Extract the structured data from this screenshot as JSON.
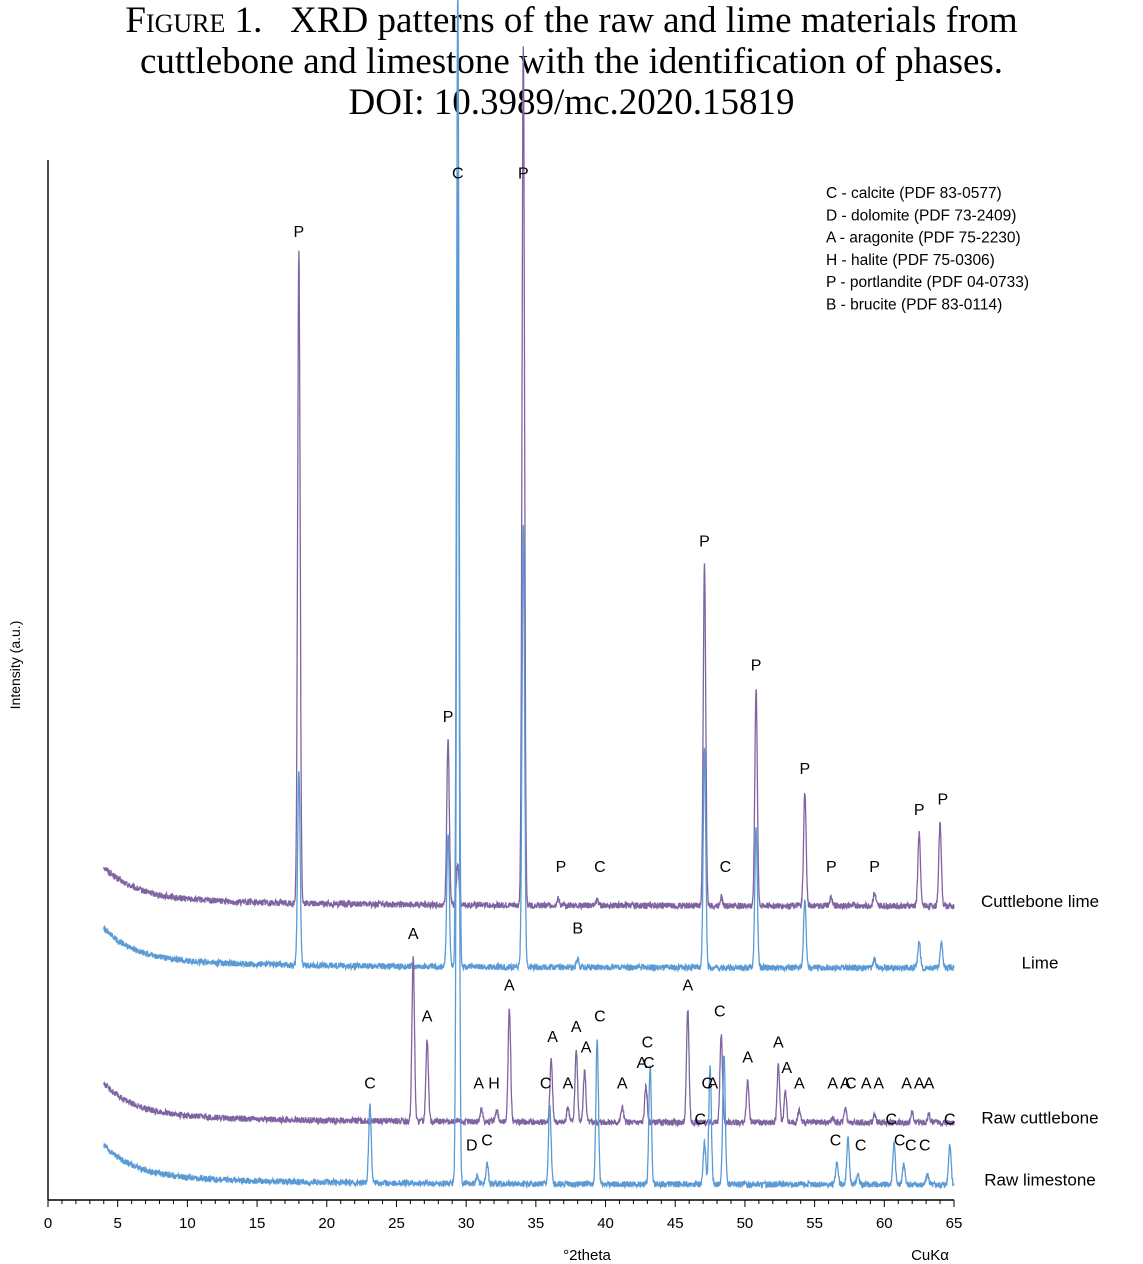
{
  "figure": {
    "label": "Figure 1.",
    "caption_line1": "XRD patterns of the raw and lime materials from",
    "caption_line2": "cuttlebone and limestone with the identification of phases.",
    "doi": "DOI: 10.3989/mc.2020.15819"
  },
  "chart_data": {
    "type": "line",
    "xlabel": "°2theta",
    "xlabel_right": "CuKα",
    "ylabel": "Intensity (a.u.)",
    "xlim": [
      0,
      65
    ],
    "x_ticks": [
      0,
      5,
      10,
      15,
      20,
      25,
      30,
      35,
      40,
      45,
      50,
      55,
      60,
      65
    ],
    "legend_position": "top-right",
    "legend": [
      "C - calcite (PDF 83-0577)",
      "D - dolomite (PDF 73-2409)",
      "A - aragonite (PDF 75-2230)",
      "H - halite (PDF 75-0306)",
      "P - portlandite (PDF 04-0733)",
      "B - brucite (PDF 83-0114)"
    ],
    "series": [
      {
        "name": "Cuttlebone lime",
        "color": "#8064a2",
        "baseline": 0.285,
        "peaks": [
          [
            18.0,
            0.63
          ],
          [
            28.7,
            0.16
          ],
          [
            29.4,
            0.04
          ],
          [
            34.1,
            0.83
          ],
          [
            36.6,
            0.006
          ],
          [
            39.4,
            0.005
          ],
          [
            47.1,
            0.33
          ],
          [
            48.3,
            0.008
          ],
          [
            50.8,
            0.21
          ],
          [
            54.3,
            0.11
          ],
          [
            56.2,
            0.008
          ],
          [
            59.3,
            0.012
          ],
          [
            62.5,
            0.07
          ],
          [
            64.0,
            0.08
          ]
        ],
        "labels": [
          [
            "P",
            18.0
          ],
          [
            "P",
            28.7
          ],
          [
            "P",
            34.1
          ],
          [
            "P",
            36.8
          ],
          [
            "C",
            39.6
          ],
          [
            "P",
            47.1
          ],
          [
            "C",
            48.6
          ],
          [
            "P",
            50.8
          ],
          [
            "P",
            54.3
          ],
          [
            "P",
            56.2
          ],
          [
            "P",
            59.3
          ],
          [
            "P",
            62.5
          ],
          [
            "P",
            64.2
          ]
        ]
      },
      {
        "name": "Lime",
        "color": "#5b9bd5",
        "baseline": 0.225,
        "peaks": [
          [
            18.0,
            0.19
          ],
          [
            28.7,
            0.13
          ],
          [
            29.4,
            0.95
          ],
          [
            34.1,
            0.43
          ],
          [
            38.0,
            0.008
          ],
          [
            47.1,
            0.215
          ],
          [
            50.8,
            0.135
          ],
          [
            54.3,
            0.065
          ],
          [
            59.3,
            0.008
          ],
          [
            62.5,
            0.025
          ],
          [
            64.1,
            0.025
          ]
        ],
        "labels": [
          [
            "B",
            38.0
          ]
        ]
      },
      {
        "name": "Raw cuttlebone",
        "color": "#8064a2",
        "baseline": 0.075,
        "peaks": [
          [
            26.2,
            0.16
          ],
          [
            27.2,
            0.08
          ],
          [
            31.1,
            0.012
          ],
          [
            32.2,
            0.012
          ],
          [
            33.1,
            0.11
          ],
          [
            36.1,
            0.06
          ],
          [
            37.3,
            0.015
          ],
          [
            37.9,
            0.07
          ],
          [
            38.5,
            0.05
          ],
          [
            41.2,
            0.015
          ],
          [
            42.9,
            0.035
          ],
          [
            45.9,
            0.11
          ],
          [
            48.3,
            0.085
          ],
          [
            50.2,
            0.04
          ],
          [
            52.4,
            0.055
          ],
          [
            52.9,
            0.03
          ],
          [
            53.9,
            0.012
          ],
          [
            56.3,
            0.005
          ],
          [
            57.2,
            0.015
          ],
          [
            59.3,
            0.008
          ],
          [
            62.0,
            0.01
          ],
          [
            63.2,
            0.008
          ]
        ],
        "labels": [
          [
            "A",
            26.2
          ],
          [
            "A",
            27.2
          ],
          [
            "A",
            30.9
          ],
          [
            "H",
            32.0
          ],
          [
            "A",
            33.1
          ],
          [
            "C",
            35.7
          ],
          [
            "A",
            36.2
          ],
          [
            "A",
            37.3
          ],
          [
            "A",
            37.9
          ],
          [
            "A",
            38.6
          ],
          [
            "A",
            41.2
          ],
          [
            "A",
            42.6
          ],
          [
            "C",
            43.1
          ],
          [
            "A",
            45.9
          ],
          [
            "C",
            47.3
          ],
          [
            "A",
            47.7
          ],
          [
            "C",
            48.2
          ],
          [
            "A",
            50.2
          ],
          [
            "A",
            52.4
          ],
          [
            "A",
            53.0
          ],
          [
            "A",
            53.9
          ],
          [
            "A",
            56.3
          ],
          [
            "A",
            57.2
          ],
          [
            "C",
            57.6
          ],
          [
            "A",
            58.7
          ],
          [
            "A",
            59.6
          ],
          [
            "A",
            61.6
          ],
          [
            "A",
            62.5
          ],
          [
            "A",
            63.2
          ]
        ]
      },
      {
        "name": "Raw limestone",
        "color": "#5b9bd5",
        "baseline": 0.015,
        "peaks": [
          [
            23.1,
            0.075
          ],
          [
            29.4,
            0.98
          ],
          [
            30.8,
            0.008
          ],
          [
            31.5,
            0.02
          ],
          [
            36.0,
            0.075
          ],
          [
            39.4,
            0.14
          ],
          [
            43.2,
            0.115
          ],
          [
            47.1,
            0.04
          ],
          [
            47.5,
            0.115
          ],
          [
            48.5,
            0.125
          ],
          [
            56.6,
            0.02
          ],
          [
            57.4,
            0.045
          ],
          [
            58.1,
            0.01
          ],
          [
            60.7,
            0.04
          ],
          [
            61.4,
            0.02
          ],
          [
            63.1,
            0.01
          ],
          [
            64.7,
            0.04
          ]
        ],
        "labels": [
          [
            "C",
            23.1
          ],
          [
            "D",
            30.4
          ],
          [
            "C",
            31.5
          ],
          [
            "C",
            29.4
          ],
          [
            "C",
            39.6
          ],
          [
            "C",
            43.0
          ],
          [
            "C",
            46.8
          ],
          [
            "C",
            56.5
          ],
          [
            "C",
            58.3
          ],
          [
            "C",
            60.5
          ],
          [
            "C",
            61.1
          ],
          [
            "C",
            61.9
          ],
          [
            "C",
            62.9
          ],
          [
            "C",
            64.7
          ]
        ]
      }
    ]
  }
}
